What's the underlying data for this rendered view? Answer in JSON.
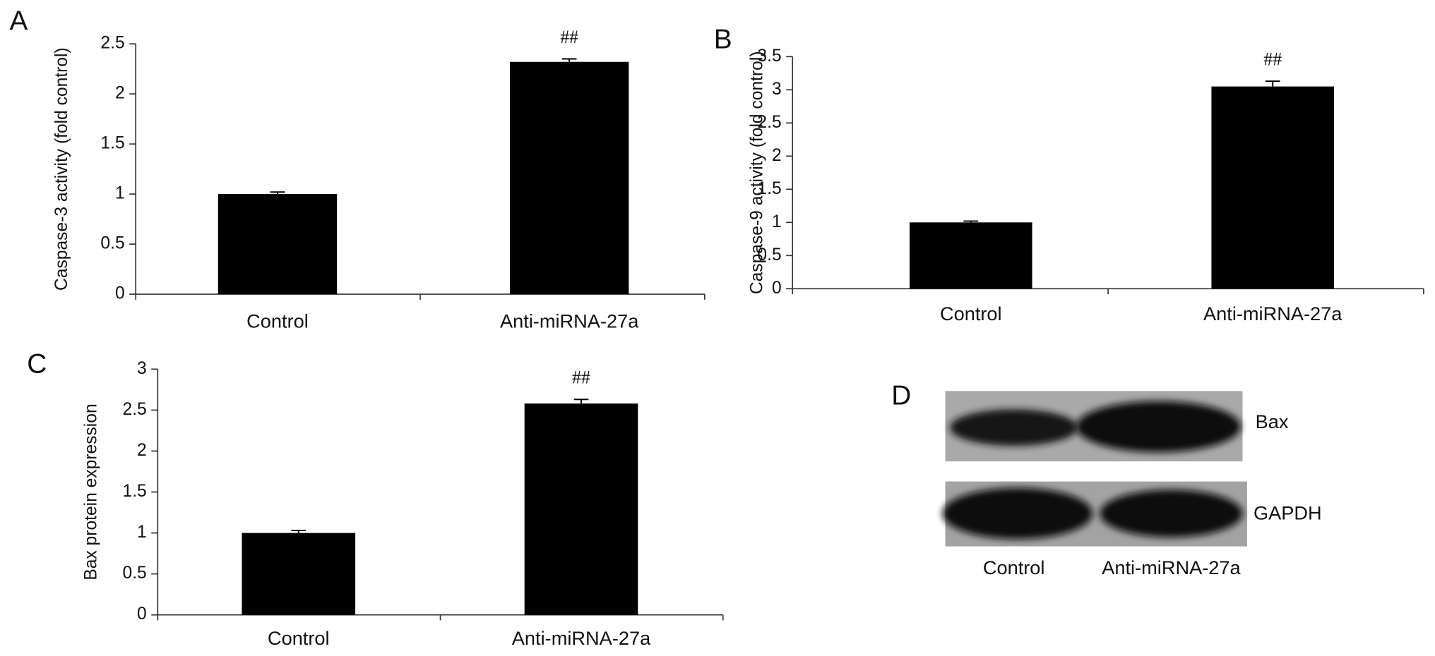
{
  "chart_data": [
    {
      "type": "bar",
      "panel": "A",
      "ylabel": "Caspase-3 activity (fold control)",
      "categories": [
        "Control",
        "Anti-miRNA-27a"
      ],
      "values": [
        1.0,
        2.32
      ],
      "errors": [
        0.02,
        0.03
      ],
      "annotations": [
        {
          "text": "##",
          "category": "Anti-miRNA-27a"
        }
      ],
      "color": "#000000",
      "ylim": [
        0,
        2.5
      ],
      "yticks": [
        0,
        0.5,
        1,
        1.5,
        2,
        2.5
      ]
    },
    {
      "type": "bar",
      "panel": "B",
      "ylabel": "Caspase-9 activity (fold control)",
      "categories": [
        "Control",
        "Anti-miRNA-27a"
      ],
      "values": [
        1.0,
        3.05
      ],
      "errors": [
        0.02,
        0.08
      ],
      "annotations": [
        {
          "text": "##",
          "category": "Anti-miRNA-27a"
        }
      ],
      "color": "#000000",
      "ylim": [
        0,
        3.5
      ],
      "yticks": [
        0,
        0.5,
        1,
        1.5,
        2,
        2.5,
        3,
        3.5
      ]
    },
    {
      "type": "bar",
      "panel": "C",
      "ylabel": "Bax protein expression",
      "categories": [
        "Control",
        "Anti-miRNA-27a"
      ],
      "values": [
        1.0,
        2.58
      ],
      "errors": [
        0.03,
        0.05
      ],
      "annotations": [
        {
          "text": "##",
          "category": "Anti-miRNA-27a"
        }
      ],
      "color": "#000000",
      "ylim": [
        0,
        3
      ],
      "yticks": [
        0,
        0.5,
        1,
        1.5,
        2,
        2.5,
        3
      ]
    }
  ],
  "blot": {
    "panel": "D",
    "bands": [
      "Bax",
      "GAPDH"
    ],
    "lanes": [
      "Control",
      "Anti-miRNA-27a"
    ]
  }
}
